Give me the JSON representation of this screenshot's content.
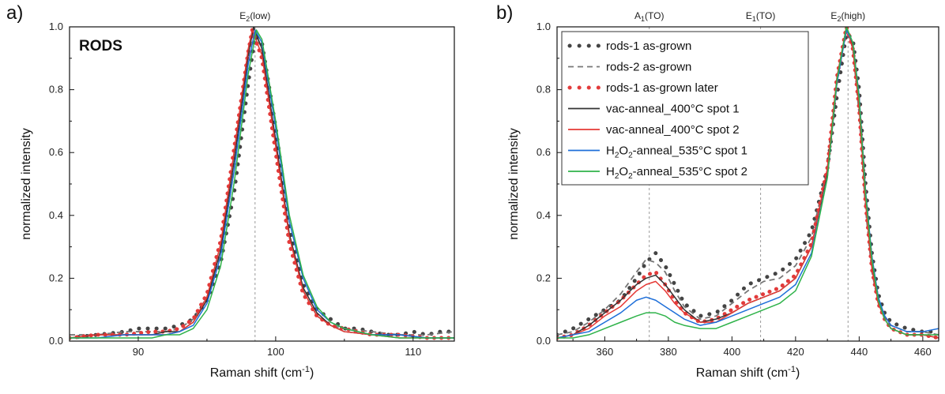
{
  "chart_data": [
    {
      "type": "line",
      "panel": "a)",
      "tag": "RODS",
      "xlabel": "Raman shift (cm",
      "xlabel_sup": "-1",
      "xlabel_end": ")",
      "ylabel": "normalized intensity",
      "xlim": [
        85,
        113
      ],
      "ylim": [
        0,
        1.0
      ],
      "xticks": [
        90,
        100,
        110
      ],
      "yticks": [
        0.0,
        0.2,
        0.4,
        0.6,
        0.8,
        1.0
      ],
      "ytick_labels": [
        "0.0",
        "0.2",
        "0.4",
        "0.6",
        "0.8",
        "1.0"
      ],
      "peak_markers": [
        {
          "x": 98.5,
          "label": "E",
          "sub": "2",
          "tail": "(low)"
        }
      ],
      "series": [
        {
          "style": "gray-dots",
          "color": "#444444",
          "x": [
            85,
            87,
            89,
            90,
            91,
            92,
            93,
            94,
            95,
            96,
            97,
            98,
            98.5,
            99,
            100,
            101,
            102,
            103,
            104,
            105,
            106,
            107,
            108,
            109,
            110,
            111,
            112,
            113
          ],
          "y": [
            0.01,
            0.02,
            0.03,
            0.04,
            0.04,
            0.04,
            0.05,
            0.07,
            0.13,
            0.25,
            0.48,
            0.82,
            0.97,
            0.95,
            0.68,
            0.36,
            0.18,
            0.1,
            0.07,
            0.04,
            0.04,
            0.03,
            0.02,
            0.02,
            0.03,
            0.02,
            0.03,
            0.03
          ]
        },
        {
          "style": "gray-dash",
          "color": "#777777",
          "x": [
            85,
            87,
            89,
            91,
            92,
            93,
            94,
            95,
            96,
            97,
            98,
            98.4,
            99,
            100,
            101,
            102,
            103,
            104,
            105,
            107,
            109,
            111,
            113
          ],
          "y": [
            0.02,
            0.02,
            0.03,
            0.03,
            0.03,
            0.04,
            0.07,
            0.14,
            0.28,
            0.55,
            0.9,
            0.99,
            0.93,
            0.63,
            0.33,
            0.16,
            0.08,
            0.05,
            0.04,
            0.03,
            0.02,
            0.02,
            0.03
          ]
        },
        {
          "style": "red-dots",
          "color": "#e23b3b",
          "x": [
            85,
            87,
            89,
            91,
            92,
            93,
            94,
            95,
            96,
            97,
            98,
            98.3,
            99,
            100,
            101,
            102,
            103,
            104,
            105,
            107,
            109,
            111,
            113
          ],
          "y": [
            0.01,
            0.02,
            0.02,
            0.03,
            0.03,
            0.04,
            0.07,
            0.15,
            0.32,
            0.62,
            0.92,
            0.99,
            0.9,
            0.6,
            0.31,
            0.15,
            0.08,
            0.05,
            0.04,
            0.02,
            0.02,
            0.01,
            0.01
          ]
        },
        {
          "style": "solid",
          "color": "#333333",
          "x": [
            85,
            87,
            89,
            91,
            92,
            93,
            94,
            95,
            96,
            97,
            98,
            98.4,
            99,
            100,
            101,
            102,
            103,
            104,
            105,
            107,
            109,
            111,
            113
          ],
          "y": [
            0.01,
            0.02,
            0.02,
            0.02,
            0.03,
            0.03,
            0.06,
            0.13,
            0.29,
            0.58,
            0.91,
            1.0,
            0.93,
            0.64,
            0.34,
            0.17,
            0.09,
            0.05,
            0.03,
            0.02,
            0.02,
            0.01,
            0.01
          ]
        },
        {
          "style": "solid",
          "color": "#e53935",
          "x": [
            85,
            87,
            89,
            91,
            92,
            93,
            94,
            95,
            96,
            97,
            98,
            98.3,
            99,
            100,
            101,
            102,
            103,
            104,
            105,
            107,
            109,
            111,
            113
          ],
          "y": [
            0.01,
            0.02,
            0.02,
            0.02,
            0.02,
            0.03,
            0.06,
            0.14,
            0.31,
            0.61,
            0.93,
            0.99,
            0.91,
            0.62,
            0.33,
            0.16,
            0.08,
            0.05,
            0.03,
            0.02,
            0.01,
            0.01,
            0.01
          ]
        },
        {
          "style": "solid",
          "color": "#1e6fd9",
          "x": [
            85,
            87,
            89,
            91,
            92,
            93,
            94,
            95,
            96,
            97,
            98,
            98.5,
            99,
            100,
            101,
            102,
            103,
            104,
            105,
            107,
            109,
            111,
            113
          ],
          "y": [
            0.01,
            0.01,
            0.02,
            0.02,
            0.02,
            0.03,
            0.05,
            0.12,
            0.27,
            0.55,
            0.88,
            0.99,
            0.95,
            0.68,
            0.38,
            0.2,
            0.1,
            0.06,
            0.04,
            0.02,
            0.02,
            0.01,
            0.01
          ]
        },
        {
          "style": "solid",
          "color": "#2fb34a",
          "x": [
            85,
            87,
            89,
            91,
            92,
            93,
            94,
            95,
            96,
            97,
            98,
            98.6,
            99,
            100,
            101,
            102,
            103,
            104,
            105,
            107,
            109,
            111,
            113
          ],
          "y": [
            0.01,
            0.01,
            0.01,
            0.01,
            0.02,
            0.02,
            0.04,
            0.1,
            0.24,
            0.51,
            0.85,
            0.99,
            0.96,
            0.7,
            0.4,
            0.21,
            0.11,
            0.06,
            0.04,
            0.02,
            0.01,
            0.01,
            0.01
          ]
        }
      ]
    },
    {
      "type": "line",
      "panel": "b)",
      "xlabel": "Raman shift (cm",
      "xlabel_sup": "-1",
      "xlabel_end": ")",
      "ylabel": "normalized intensity",
      "xlim": [
        345,
        465
      ],
      "ylim": [
        0,
        1.0
      ],
      "xticks": [
        360,
        380,
        400,
        420,
        440,
        460
      ],
      "yticks": [
        0.0,
        0.2,
        0.4,
        0.6,
        0.8,
        1.0
      ],
      "ytick_labels": [
        "0.0",
        "0.2",
        "0.4",
        "0.6",
        "0.8",
        "1.0"
      ],
      "legend_position": "top-left",
      "peak_markers": [
        {
          "x": 374,
          "label": "A",
          "sub": "1",
          "tail": "(TO)"
        },
        {
          "x": 409,
          "label": "E",
          "sub": "1",
          "tail": "(TO)"
        },
        {
          "x": 436.5,
          "label": "E",
          "sub": "2",
          "tail": "(high)"
        }
      ],
      "series": [
        {
          "name": "rods-1 as-grown",
          "style": "gray-dots",
          "color": "#444444",
          "x": [
            345,
            350,
            355,
            360,
            365,
            370,
            373,
            376,
            379,
            382,
            385,
            390,
            395,
            400,
            405,
            410,
            415,
            420,
            425,
            430,
            433,
            436,
            438,
            440,
            442,
            444,
            446,
            448,
            450,
            455,
            460,
            465
          ],
          "y": [
            0.02,
            0.04,
            0.07,
            0.1,
            0.13,
            0.2,
            0.25,
            0.28,
            0.24,
            0.18,
            0.12,
            0.08,
            0.09,
            0.13,
            0.18,
            0.2,
            0.22,
            0.26,
            0.35,
            0.55,
            0.78,
            0.98,
            0.96,
            0.8,
            0.5,
            0.28,
            0.15,
            0.09,
            0.06,
            0.04,
            0.03,
            0.03
          ]
        },
        {
          "name": "rods-2 as-grown",
          "style": "gray-dash",
          "color": "#777777",
          "x": [
            345,
            350,
            355,
            360,
            365,
            370,
            373,
            376,
            379,
            382,
            385,
            390,
            395,
            400,
            405,
            410,
            415,
            420,
            425,
            430,
            433,
            436,
            438,
            440,
            442,
            444,
            446,
            448,
            450,
            455,
            460,
            465
          ],
          "y": [
            0.02,
            0.03,
            0.06,
            0.1,
            0.15,
            0.22,
            0.26,
            0.25,
            0.22,
            0.16,
            0.11,
            0.07,
            0.08,
            0.12,
            0.16,
            0.19,
            0.2,
            0.24,
            0.33,
            0.55,
            0.82,
            1.0,
            0.93,
            0.72,
            0.42,
            0.22,
            0.12,
            0.08,
            0.05,
            0.03,
            0.03,
            0.02
          ]
        },
        {
          "name": "rods-1 as-grown later",
          "style": "red-dots",
          "color": "#e23b3b",
          "x": [
            345,
            350,
            355,
            360,
            365,
            370,
            373,
            376,
            379,
            382,
            385,
            390,
            395,
            400,
            405,
            410,
            415,
            420,
            425,
            430,
            433,
            436,
            438,
            440,
            442,
            444,
            446,
            448,
            450,
            455,
            460,
            465
          ],
          "y": [
            0.01,
            0.02,
            0.05,
            0.09,
            0.13,
            0.18,
            0.21,
            0.22,
            0.18,
            0.13,
            0.09,
            0.06,
            0.07,
            0.1,
            0.13,
            0.15,
            0.17,
            0.21,
            0.31,
            0.55,
            0.84,
            1.0,
            0.93,
            0.74,
            0.44,
            0.23,
            0.12,
            0.07,
            0.04,
            0.02,
            0.02,
            0.01
          ]
        },
        {
          "name": "vac-anneal_400°C spot 1",
          "style": "solid",
          "color": "#333333",
          "x": [
            345,
            350,
            355,
            360,
            365,
            370,
            373,
            376,
            379,
            382,
            385,
            390,
            395,
            400,
            405,
            410,
            415,
            420,
            425,
            430,
            433,
            436,
            438,
            440,
            442,
            444,
            446,
            448,
            450,
            455,
            460,
            465
          ],
          "y": [
            0.01,
            0.02,
            0.05,
            0.09,
            0.13,
            0.18,
            0.2,
            0.21,
            0.18,
            0.14,
            0.1,
            0.06,
            0.07,
            0.09,
            0.12,
            0.14,
            0.16,
            0.2,
            0.3,
            0.54,
            0.83,
            1.0,
            0.94,
            0.75,
            0.45,
            0.24,
            0.13,
            0.07,
            0.04,
            0.02,
            0.02,
            0.01
          ]
        },
        {
          "name": "vac-anneal_400°C spot 2",
          "style": "solid",
          "color": "#e53935",
          "x": [
            345,
            350,
            355,
            360,
            365,
            370,
            373,
            376,
            379,
            382,
            385,
            390,
            395,
            400,
            405,
            410,
            415,
            420,
            425,
            430,
            433,
            436,
            438,
            440,
            442,
            444,
            446,
            448,
            450,
            455,
            460,
            465
          ],
          "y": [
            0.01,
            0.02,
            0.04,
            0.08,
            0.11,
            0.16,
            0.18,
            0.19,
            0.16,
            0.12,
            0.09,
            0.06,
            0.06,
            0.09,
            0.12,
            0.14,
            0.16,
            0.2,
            0.3,
            0.55,
            0.84,
            1.0,
            0.93,
            0.74,
            0.44,
            0.23,
            0.12,
            0.07,
            0.04,
            0.02,
            0.02,
            0.01
          ]
        },
        {
          "name": "H2O2-anneal_535°C spot 1",
          "style": "solid",
          "color": "#1e6fd9",
          "x": [
            345,
            350,
            355,
            360,
            365,
            370,
            373,
            376,
            379,
            382,
            385,
            390,
            395,
            400,
            405,
            410,
            415,
            420,
            425,
            430,
            433,
            436,
            438,
            440,
            442,
            444,
            446,
            448,
            450,
            455,
            460,
            465
          ],
          "y": [
            0.01,
            0.02,
            0.03,
            0.06,
            0.09,
            0.13,
            0.14,
            0.13,
            0.11,
            0.09,
            0.07,
            0.05,
            0.06,
            0.08,
            0.1,
            0.12,
            0.14,
            0.18,
            0.28,
            0.52,
            0.82,
            0.99,
            0.95,
            0.78,
            0.48,
            0.27,
            0.14,
            0.08,
            0.05,
            0.03,
            0.03,
            0.04
          ]
        },
        {
          "name": "H2O2-anneal_535°C spot 2",
          "style": "solid",
          "color": "#2fb34a",
          "x": [
            345,
            350,
            355,
            360,
            365,
            370,
            373,
            376,
            379,
            382,
            385,
            390,
            395,
            400,
            405,
            410,
            415,
            420,
            425,
            430,
            433,
            436,
            438,
            440,
            442,
            444,
            446,
            448,
            450,
            455,
            460,
            465
          ],
          "y": [
            0.01,
            0.01,
            0.02,
            0.04,
            0.06,
            0.08,
            0.09,
            0.09,
            0.08,
            0.06,
            0.05,
            0.04,
            0.04,
            0.06,
            0.08,
            0.1,
            0.12,
            0.16,
            0.27,
            0.52,
            0.83,
            1.0,
            0.95,
            0.77,
            0.47,
            0.26,
            0.13,
            0.07,
            0.04,
            0.02,
            0.02,
            0.02
          ]
        }
      ]
    }
  ],
  "legend": {
    "entries": [
      {
        "text": "rods-1 as-grown"
      },
      {
        "text": "rods-2 as-grown"
      },
      {
        "text": "rods-1 as-grown later"
      },
      {
        "text": "vac-anneal_400°C spot 1"
      },
      {
        "text": "vac-anneal_400°C spot 2"
      },
      {
        "text": "H",
        "sub1": "2",
        "mid": "O",
        "sub2": "2",
        "tail": "-anneal_535°C spot 1"
      },
      {
        "text": "H",
        "sub1": "2",
        "mid": "O",
        "sub2": "2",
        "tail": "-anneal_535°C spot 2"
      }
    ]
  }
}
